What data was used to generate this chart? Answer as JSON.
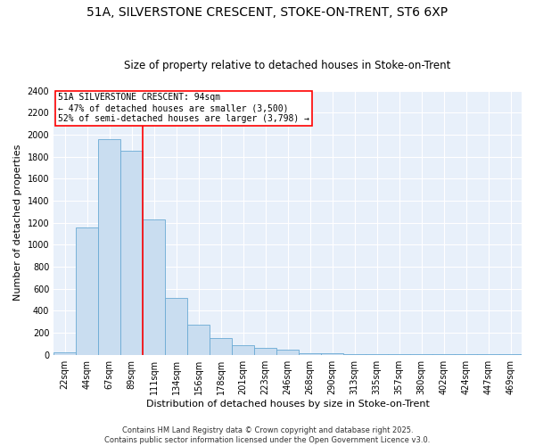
{
  "title1": "51A, SILVERSTONE CRESCENT, STOKE-ON-TRENT, ST6 6XP",
  "title2": "Size of property relative to detached houses in Stoke-on-Trent",
  "xlabel": "Distribution of detached houses by size in Stoke-on-Trent",
  "ylabel": "Number of detached properties",
  "bar_labels": [
    "22sqm",
    "44sqm",
    "67sqm",
    "89sqm",
    "111sqm",
    "134sqm",
    "156sqm",
    "178sqm",
    "201sqm",
    "223sqm",
    "246sqm",
    "268sqm",
    "290sqm",
    "313sqm",
    "335sqm",
    "357sqm",
    "380sqm",
    "402sqm",
    "424sqm",
    "447sqm",
    "469sqm"
  ],
  "bar_values": [
    25,
    1160,
    1960,
    1850,
    1230,
    515,
    275,
    155,
    90,
    60,
    50,
    15,
    10,
    5,
    3,
    2,
    2,
    2,
    2,
    2,
    2
  ],
  "bar_color": "#c9ddf0",
  "bar_edge_color": "#6aaad4",
  "vline_pos": 3.5,
  "vline_color": "red",
  "annotation_title": "51A SILVERSTONE CRESCENT: 94sqm",
  "annotation_line1": "← 47% of detached houses are smaller (3,500)",
  "annotation_line2": "52% of semi-detached houses are larger (3,798) →",
  "annotation_box_facecolor": "#ffffff",
  "annotation_box_edgecolor": "red",
  "ylim": [
    0,
    2400
  ],
  "yticks": [
    0,
    200,
    400,
    600,
    800,
    1000,
    1200,
    1400,
    1600,
    1800,
    2000,
    2200,
    2400
  ],
  "bg_color": "#e8f0fa",
  "grid_color": "#ffffff",
  "footer1": "Contains HM Land Registry data © Crown copyright and database right 2025.",
  "footer2": "Contains public sector information licensed under the Open Government Licence v3.0.",
  "title1_fontsize": 10,
  "title2_fontsize": 8.5,
  "axis_tick_fontsize": 7,
  "ylabel_fontsize": 8,
  "xlabel_fontsize": 8,
  "annotation_fontsize": 7,
  "footer_fontsize": 6
}
